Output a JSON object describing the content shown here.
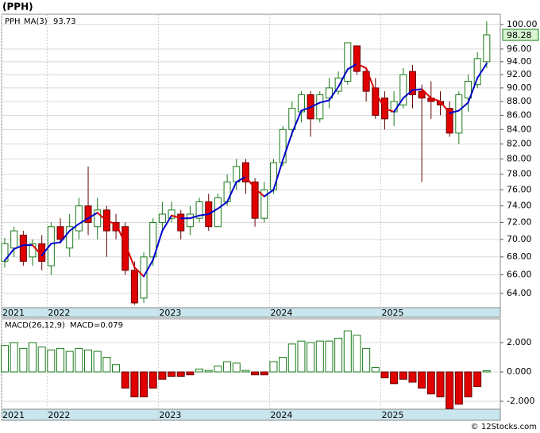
{
  "title": "(PPH)",
  "footer": "© 12Stocks.com",
  "chart_data": [
    {
      "type": "candlestick",
      "categories": [
        "2021",
        null,
        null,
        null,
        null,
        "2022",
        null,
        null,
        null,
        null,
        null,
        null,
        null,
        null,
        null,
        null,
        null,
        "2023",
        null,
        null,
        null,
        null,
        null,
        null,
        null,
        null,
        null,
        null,
        null,
        "2024",
        null,
        null,
        null,
        null,
        null,
        null,
        null,
        null,
        null,
        null,
        null,
        "2025",
        null,
        null,
        null,
        null,
        null,
        null,
        null,
        null,
        null,
        null,
        null
      ],
      "series": [
        {
          "name": "PPH",
          "color": "#1a7a1a",
          "down_color": "#e00000",
          "open": [
            67.5,
            69,
            70.5,
            68,
            69.5,
            67,
            71.5,
            69,
            71,
            74,
            71.5,
            73.5,
            72,
            71.5,
            66.5,
            63.5,
            68,
            72,
            72.5,
            73,
            71.5,
            72.5,
            74.5,
            71.5,
            74.5,
            77,
            79.5,
            77,
            72.5,
            76,
            79.5,
            84,
            86.5,
            89,
            85.5,
            88.5,
            89.5,
            91,
            96.5,
            92.5,
            90,
            88.5,
            86.5,
            87.5,
            92.5,
            89.5,
            88.5,
            88,
            87,
            83.5,
            88.5,
            90.5,
            94
          ],
          "high": [
            70.2,
            71.5,
            71,
            70,
            70.5,
            72,
            72.5,
            73,
            75,
            79,
            75,
            74,
            73,
            72,
            67.5,
            68.5,
            72.5,
            74.5,
            74.5,
            73.5,
            74,
            75,
            75.5,
            75.5,
            78,
            80,
            80,
            77.5,
            77,
            80,
            84.5,
            88,
            89.5,
            89.5,
            89.5,
            91.5,
            92.5,
            97,
            96.5,
            93,
            91.5,
            89.5,
            89.5,
            93,
            93.5,
            90.5,
            91,
            89.5,
            88,
            89.5,
            92,
            95.5,
            100.5
          ],
          "low": [
            66.8,
            68,
            67,
            67,
            66.5,
            66,
            69.5,
            68,
            70,
            70.5,
            70,
            68,
            70,
            66,
            62.8,
            63,
            67,
            71,
            72,
            70,
            70.5,
            72,
            71,
            71.5,
            74,
            76,
            75.5,
            71.5,
            72,
            75.5,
            79,
            83,
            85,
            83,
            85,
            87,
            89,
            90.5,
            92,
            88,
            85.5,
            84,
            84.5,
            87,
            87,
            77,
            85.5,
            86,
            83,
            82,
            86.5,
            90,
            93
          ],
          "close": [
            69.5,
            71,
            67.5,
            69.5,
            67.5,
            71.5,
            70,
            71.5,
            74,
            72,
            73.5,
            71,
            71,
            66.5,
            63,
            68,
            72,
            73,
            73.5,
            71,
            73,
            74.5,
            71.5,
            75,
            77,
            79,
            77,
            72.5,
            76,
            79.5,
            84,
            87,
            89,
            85.5,
            89,
            90,
            91.5,
            97,
            92.5,
            89.5,
            86,
            85.5,
            88,
            92,
            89,
            88.5,
            88,
            87.5,
            83.5,
            89,
            91,
            94.5,
            98.28
          ]
        }
      ],
      "ma": {
        "name": "MA(3)",
        "last": 93.73,
        "color": "#0000cc",
        "down_color": "#dd0000",
        "values": [
          67.6,
          68.9,
          69.33,
          69.33,
          68.17,
          69.5,
          69.67,
          71,
          71.83,
          72.5,
          73.17,
          72.17,
          71.83,
          69.5,
          66.83,
          65.83,
          67.67,
          71,
          72.83,
          72.5,
          72.5,
          72.83,
          73,
          73.67,
          74.5,
          77,
          77.67,
          76.17,
          75.17,
          76,
          79.83,
          83.5,
          86.67,
          87.17,
          87.83,
          88.17,
          90.17,
          92.83,
          93.67,
          93,
          89.33,
          87,
          86.5,
          88.5,
          89.67,
          89.83,
          88.5,
          88,
          86.33,
          86.67,
          87.83,
          91.5,
          93.73
        ]
      },
      "last_price": 98.28,
      "log_scale": true,
      "ylim": [
        62.5,
        101.7
      ],
      "yticks": [
        {
          "value": 64,
          "label": "64.00"
        },
        {
          "value": 66,
          "label": "66.00"
        },
        {
          "value": 68,
          "label": "68.00"
        },
        {
          "value": 70,
          "label": "70.00"
        },
        {
          "value": 72,
          "label": "72.00"
        },
        {
          "value": 74,
          "label": "74.00"
        },
        {
          "value": 76,
          "label": "76.00"
        },
        {
          "value": 78,
          "label": "78.00"
        },
        {
          "value": 80,
          "label": "80.00"
        },
        {
          "value": 82,
          "label": "82.00"
        },
        {
          "value": 84,
          "label": "84.00"
        },
        {
          "value": 86,
          "label": "86.00"
        },
        {
          "value": 88,
          "label": "88.00"
        },
        {
          "value": 90,
          "label": "90.00"
        },
        {
          "value": 92,
          "label": "92.00"
        },
        {
          "value": 94,
          "label": "94.00"
        },
        {
          "value": 96,
          "label": "96.00"
        },
        {
          "value": 100,
          "label": "100.00"
        }
      ],
      "grid": true
    },
    {
      "type": "bar",
      "title": "MACD(26,12,9)",
      "value_text": "MACD=0.079",
      "categories": [
        "2021",
        null,
        null,
        null,
        null,
        "2022",
        null,
        null,
        null,
        null,
        null,
        null,
        null,
        null,
        null,
        null,
        null,
        "2023",
        null,
        null,
        null,
        null,
        null,
        null,
        null,
        null,
        null,
        null,
        null,
        "2024",
        null,
        null,
        null,
        null,
        null,
        null,
        null,
        null,
        null,
        null,
        null,
        "2025",
        null,
        null,
        null,
        null,
        null,
        null,
        null,
        null,
        null,
        null,
        null
      ],
      "values": [
        1.8,
        2.0,
        1.6,
        2.0,
        1.7,
        1.5,
        1.6,
        1.4,
        1.6,
        1.5,
        1.4,
        1.0,
        0.5,
        -1.1,
        -1.7,
        -1.7,
        -1.1,
        -0.5,
        -0.3,
        -0.3,
        -0.2,
        0.2,
        0.1,
        0.4,
        0.7,
        0.6,
        0.1,
        -0.2,
        -0.2,
        0.7,
        1.0,
        1.9,
        2.1,
        2.0,
        2.1,
        2.1,
        2.3,
        2.8,
        2.5,
        1.6,
        0.3,
        -0.4,
        -0.8,
        -0.5,
        -0.7,
        -1.1,
        -1.5,
        -1.7,
        -2.5,
        -2.2,
        -1.7,
        -1.0,
        0.08
      ],
      "color": "#1a7a1a",
      "down_color": "#e00000",
      "ylim": [
        -2.54,
        3.62
      ],
      "yticks": [
        {
          "value": -2,
          "label": "-2.000"
        },
        {
          "value": 0,
          "label": "0.000"
        },
        {
          "value": 2,
          "label": "2.000"
        }
      ],
      "grid": true
    }
  ]
}
